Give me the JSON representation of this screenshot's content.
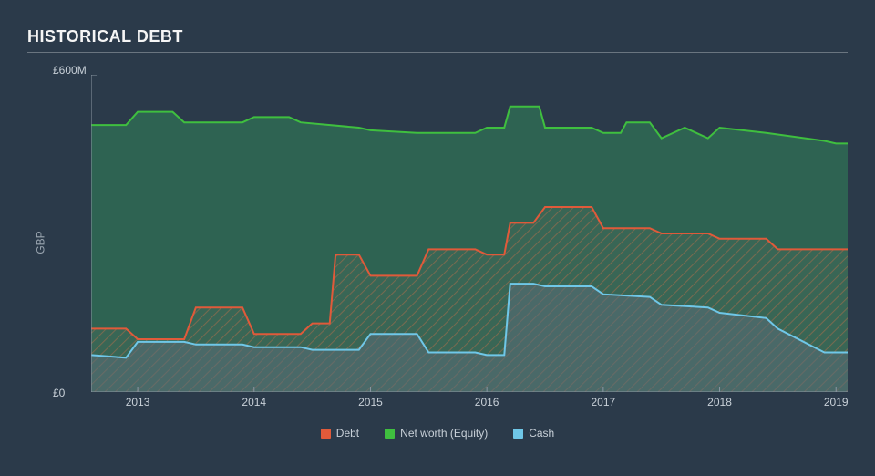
{
  "chart": {
    "type": "area",
    "title": "HISTORICAL DEBT",
    "y_axis_label": "GBP",
    "y_top_label": "£600M",
    "y_bottom_label": "£0",
    "ylim": [
      0,
      600
    ],
    "x_years": [
      2013,
      2014,
      2015,
      2016,
      2017,
      2018,
      2019
    ],
    "x_domain": [
      2012.6,
      2019.1
    ],
    "background_color": "#2b3a4a",
    "axis_line_color": "#8a96a2",
    "tick_color": "#8a96a2",
    "text_color": "#c8d0d8",
    "title_underline_color": "#6a7580",
    "series": {
      "equity": {
        "label": "Net worth (Equity)",
        "stroke": "#3fbf3f",
        "fill": "#2f6b53",
        "fill_opacity": 0.85,
        "points": [
          [
            2012.6,
            505
          ],
          [
            2012.9,
            505
          ],
          [
            2013.0,
            530
          ],
          [
            2013.3,
            530
          ],
          [
            2013.4,
            510
          ],
          [
            2013.9,
            510
          ],
          [
            2014.0,
            520
          ],
          [
            2014.3,
            520
          ],
          [
            2014.4,
            510
          ],
          [
            2014.9,
            500
          ],
          [
            2015.0,
            495
          ],
          [
            2015.4,
            490
          ],
          [
            2015.9,
            490
          ],
          [
            2016.0,
            500
          ],
          [
            2016.15,
            500
          ],
          [
            2016.2,
            540
          ],
          [
            2016.45,
            540
          ],
          [
            2016.5,
            500
          ],
          [
            2016.9,
            500
          ],
          [
            2017.0,
            490
          ],
          [
            2017.15,
            490
          ],
          [
            2017.2,
            510
          ],
          [
            2017.4,
            510
          ],
          [
            2017.5,
            480
          ],
          [
            2017.7,
            500
          ],
          [
            2017.9,
            480
          ],
          [
            2018.0,
            500
          ],
          [
            2018.4,
            490
          ],
          [
            2018.9,
            475
          ],
          [
            2019.0,
            470
          ],
          [
            2019.1,
            470
          ]
        ]
      },
      "debt": {
        "label": "Debt",
        "stroke": "#e05a3a",
        "fill_pattern": true,
        "hatch_color": "#6b5a44",
        "hatch_bg": "rgba(90,100,95,0.25)",
        "points": [
          [
            2012.6,
            120
          ],
          [
            2012.9,
            120
          ],
          [
            2013.0,
            100
          ],
          [
            2013.4,
            100
          ],
          [
            2013.5,
            160
          ],
          [
            2013.9,
            160
          ],
          [
            2014.0,
            110
          ],
          [
            2014.4,
            110
          ],
          [
            2014.5,
            130
          ],
          [
            2014.65,
            130
          ],
          [
            2014.7,
            260
          ],
          [
            2014.9,
            260
          ],
          [
            2015.0,
            220
          ],
          [
            2015.4,
            220
          ],
          [
            2015.5,
            270
          ],
          [
            2015.9,
            270
          ],
          [
            2016.0,
            260
          ],
          [
            2016.15,
            260
          ],
          [
            2016.2,
            320
          ],
          [
            2016.4,
            320
          ],
          [
            2016.5,
            350
          ],
          [
            2016.9,
            350
          ],
          [
            2017.0,
            310
          ],
          [
            2017.4,
            310
          ],
          [
            2017.5,
            300
          ],
          [
            2017.9,
            300
          ],
          [
            2018.0,
            290
          ],
          [
            2018.4,
            290
          ],
          [
            2018.5,
            270
          ],
          [
            2019.0,
            270
          ],
          [
            2019.1,
            270
          ]
        ]
      },
      "cash": {
        "label": "Cash",
        "stroke": "#6fc7e8",
        "fill": "#5a6c78",
        "fill_opacity": 0.55,
        "points": [
          [
            2012.6,
            70
          ],
          [
            2012.9,
            65
          ],
          [
            2013.0,
            95
          ],
          [
            2013.4,
            95
          ],
          [
            2013.5,
            90
          ],
          [
            2013.9,
            90
          ],
          [
            2014.0,
            85
          ],
          [
            2014.4,
            85
          ],
          [
            2014.5,
            80
          ],
          [
            2014.9,
            80
          ],
          [
            2015.0,
            110
          ],
          [
            2015.4,
            110
          ],
          [
            2015.5,
            75
          ],
          [
            2015.9,
            75
          ],
          [
            2016.0,
            70
          ],
          [
            2016.15,
            70
          ],
          [
            2016.2,
            205
          ],
          [
            2016.4,
            205
          ],
          [
            2016.5,
            200
          ],
          [
            2016.9,
            200
          ],
          [
            2017.0,
            185
          ],
          [
            2017.4,
            180
          ],
          [
            2017.5,
            165
          ],
          [
            2017.9,
            160
          ],
          [
            2018.0,
            150
          ],
          [
            2018.4,
            140
          ],
          [
            2018.5,
            120
          ],
          [
            2018.9,
            75
          ],
          [
            2019.0,
            75
          ],
          [
            2019.1,
            75
          ]
        ]
      }
    },
    "legend_order": [
      "debt",
      "equity",
      "cash"
    ]
  }
}
